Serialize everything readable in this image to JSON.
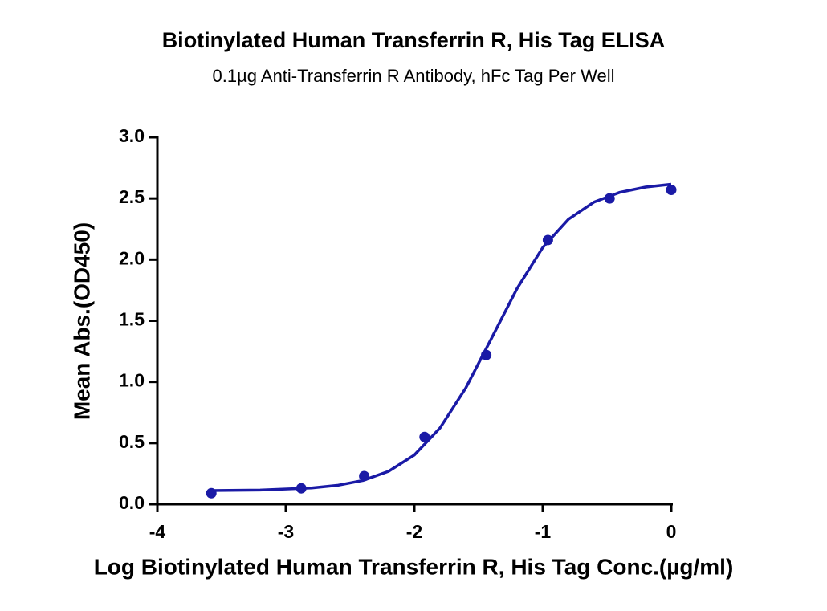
{
  "chart_data": {
    "type": "scatter",
    "title": "Biotinylated Human Transferrin R, His Tag ELISA",
    "subtitle": "0.1µg Anti-Transferrin R Antibody, hFc Tag Per Well",
    "x_label": "Log Biotinylated Human Transferrin R, His Tag Conc.(µg/ml)",
    "y_label": "Mean Abs.(OD450)",
    "series": [
      {
        "type": "scatter",
        "color": "#1a1aa6",
        "x": [
          -3.58,
          -2.88,
          -2.39,
          -1.92,
          -1.44,
          -0.96,
          -0.48,
          0
        ],
        "values": [
          0.09,
          0.13,
          0.23,
          0.55,
          1.22,
          2.16,
          2.5,
          2.57
        ]
      },
      {
        "type": "line",
        "color": "#1a1aa6",
        "x": [
          -3.6,
          -3.2,
          -2.8,
          -2.6,
          -2.4,
          -2.2,
          -2.0,
          -1.8,
          -1.6,
          -1.4,
          -1.2,
          -1.0,
          -0.8,
          -0.6,
          -0.4,
          -0.2,
          0
        ],
        "values": [
          0.112,
          0.116,
          0.133,
          0.154,
          0.194,
          0.269,
          0.402,
          0.623,
          0.949,
          1.354,
          1.764,
          2.099,
          2.33,
          2.471,
          2.55,
          2.593,
          2.616
        ]
      }
    ],
    "xlim": [
      -4,
      0
    ],
    "xticks": [
      -4,
      -3,
      -2,
      -1,
      0
    ],
    "ylim": [
      0,
      3
    ],
    "yticks": [
      {
        "value": 0,
        "label": "0.0"
      },
      0.5,
      {
        "value": 1,
        "label": "1.0"
      },
      1.5,
      {
        "value": 2,
        "label": "2.0"
      },
      2.5,
      {
        "value": 3,
        "label": "3.0"
      }
    ],
    "grid": false
  }
}
